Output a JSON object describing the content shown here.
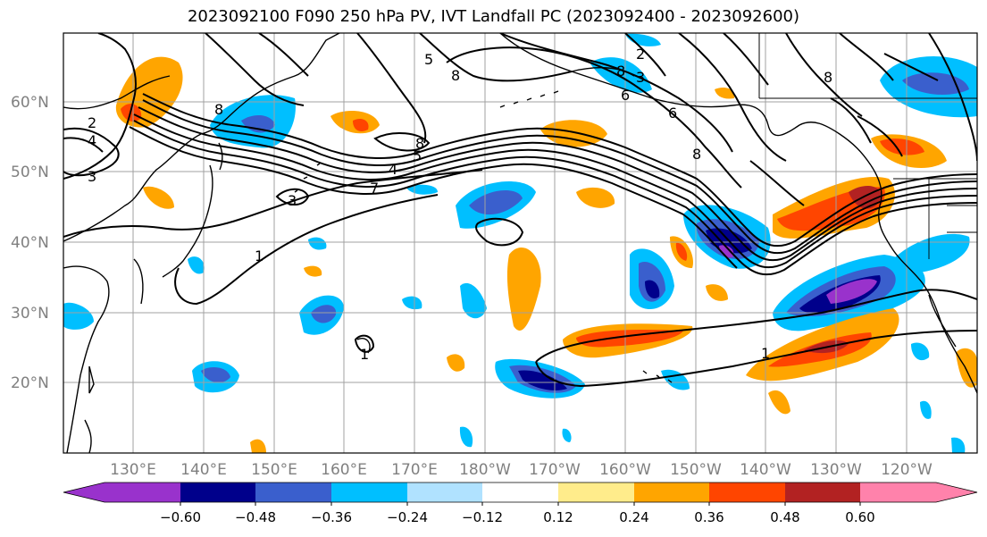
{
  "title": "2023092100 F090 250 hPa PV, IVT Landfall PC (2023092400 - 2023092600)",
  "lat_labels": [
    "60°N",
    "50°N",
    "40°N",
    "30°N",
    "20°N"
  ],
  "lon_labels": [
    "130°E",
    "140°E",
    "150°E",
    "160°E",
    "170°E",
    "180°W",
    "170°W",
    "160°W",
    "150°W",
    "140°W",
    "130°W",
    "120°W"
  ],
  "colorbar": {
    "colors": [
      "#9932cc",
      "#00008b",
      "#3a5fcd",
      "#00bfff",
      "#b0e2ff",
      "#ffffff",
      "#ffec8b",
      "#ffa500",
      "#ff4500",
      "#b22222",
      "#ff82ab"
    ],
    "tick_labels": [
      "−0.60",
      "−0.48",
      "−0.36",
      "−0.24",
      "−0.12",
      "0.12",
      "0.24",
      "0.36",
      "0.48",
      "0.60"
    ]
  },
  "contour_labels": [
    "2",
    "4",
    "3",
    "8",
    "5",
    "8",
    "6",
    "8",
    "2",
    "3",
    "6",
    "8",
    "8",
    "3",
    "1",
    "7",
    "4",
    "5",
    "8",
    "1",
    "1"
  ],
  "colors": {
    "grid": "#a0a0a0",
    "coast": "#000000",
    "contour": "#000000"
  }
}
